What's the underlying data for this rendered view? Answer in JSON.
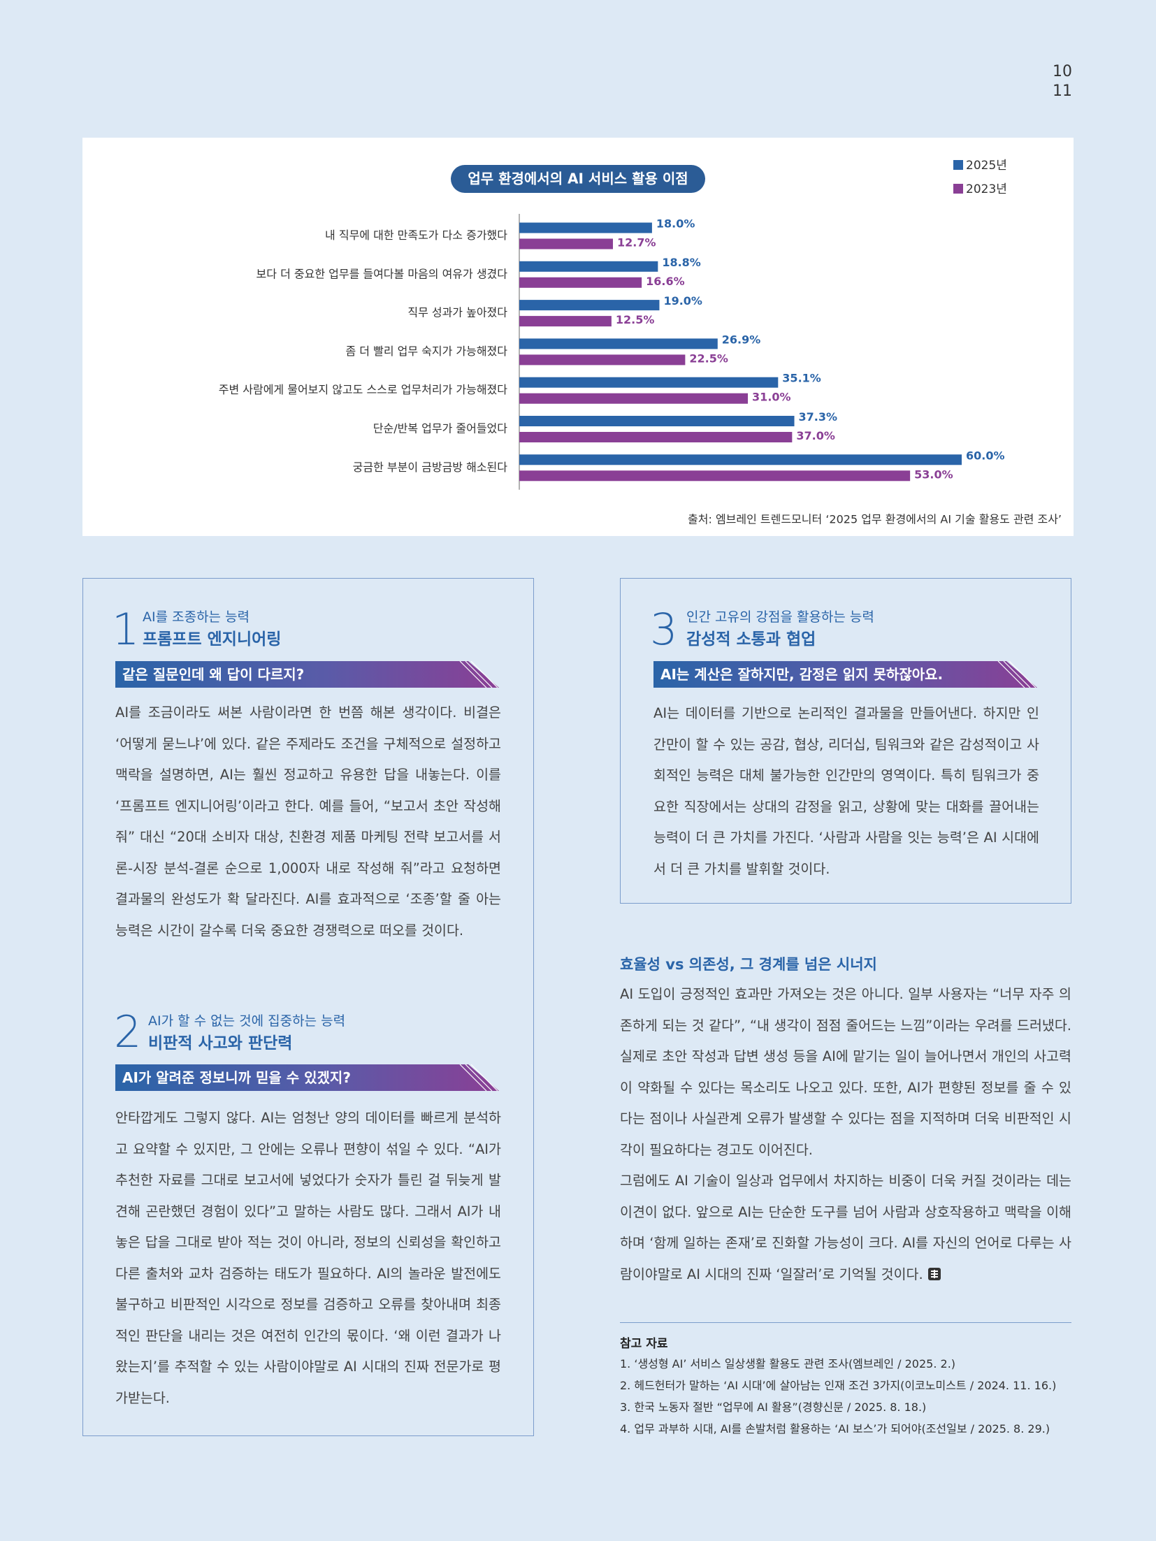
{
  "page_numbers": [
    "10",
    "11"
  ],
  "chart_data": {
    "type": "bar",
    "orientation": "horizontal",
    "title": "업무 환경에서의 AI 서비스 활용 이점",
    "categories": [
      "내 직무에 대한 만족도가 다소 증가했다",
      "보다 더 중요한 업무를 들여다볼 마음의 여유가 생겼다",
      "직무 성과가 높아졌다",
      "좀 더 빨리 업무 숙지가 가능해졌다",
      "주변 사람에게 물어보지 않고도 스스로 업무처리가 가능해졌다",
      "단순/반복 업무가 줄어들었다",
      "궁금한 부분이 금방금방 해소된다"
    ],
    "series": [
      {
        "name": "2025년",
        "color": "#2a64a8",
        "values": [
          18.0,
          18.8,
          19.0,
          26.9,
          35.1,
          37.3,
          60.0
        ],
        "value_labels": [
          "18.0%",
          "18.8%",
          "19.0%",
          "26.9%",
          "35.1%",
          "37.3%",
          "60.0%"
        ]
      },
      {
        "name": "2023년",
        "color": "#8a3f95",
        "values": [
          12.7,
          16.6,
          12.5,
          22.5,
          31.0,
          37.0,
          53.0
        ],
        "value_labels": [
          "12.7%",
          "16.6%",
          "12.5%",
          "22.5%",
          "31.0%",
          "37.0%",
          "53.0%"
        ]
      }
    ],
    "legend": "top-right",
    "source": "출처: 엠브레인 트렌드모니터 ‘2025 업무 환경에서의 AI 기술 활용도 관련 조사’"
  },
  "sections": [
    {
      "number": "1",
      "subtitle": "AI를 조종하는 능력",
      "title": "프롬프트 엔지니어링",
      "banner": "같은 질문인데 왜 답이 다르지?",
      "body": "AI를 조금이라도 써본 사람이라면 한 번쯤 해본 생각이다. 비결은 ‘어떻게 묻느냐’에 있다. 같은 주제라도 조건을 구체적으로 설정하고 맥락을 설명하면, AI는 훨씬 정교하고 유용한 답을 내놓는다. 이를 ‘프롬프트 엔지니어링’이라고 한다. 예를 들어, “보고서 초안 작성해 줘” 대신 “20대 소비자 대상, 친환경 제품 마케팅 전략 보고서를 서론-시장 분석-결론 순으로 1,000자 내로 작성해 줘”라고 요청하면 결과물의 완성도가 확 달라진다. AI를 효과적으로 ‘조종’할 줄 아는 능력은 시간이 갈수록 더욱 중요한 경쟁력으로 떠오를 것이다."
    },
    {
      "number": "2",
      "subtitle": "AI가 할 수 없는 것에 집중하는 능력",
      "title": "비판적 사고와 판단력",
      "banner": "AI가 알려준 정보니까 믿을 수 있겠지?",
      "body": "안타깝게도 그렇지 않다. AI는 엄청난 양의 데이터를 빠르게 분석하고 요약할 수 있지만, 그 안에는 오류나 편향이 섞일 수 있다. “AI가 추천한 자료를 그대로 보고서에 넣었다가 숫자가 틀린 걸 뒤늦게 발견해 곤란했던 경험이 있다”고 말하는 사람도 많다. 그래서 AI가 내놓은 답을 그대로 받아 적는 것이 아니라, 정보의 신뢰성을 확인하고 다른 출처와 교차 검증하는 태도가 필요하다. AI의 놀라운 발전에도 불구하고 비판적인 시각으로 정보를 검증하고 오류를 찾아내며 최종적인 판단을 내리는 것은 여전히 인간의 몫이다. ‘왜 이런 결과가 나왔는지’를 추적할 수 있는 사람이야말로 AI 시대의 진짜 전문가로 평가받는다."
    },
    {
      "number": "3",
      "subtitle": "인간 고유의 강점을 활용하는 능력",
      "title": "감성적 소통과 협업",
      "banner": "AI는 계산은 잘하지만, 감정은 읽지 못하잖아요.",
      "body": "AI는 데이터를 기반으로 논리적인 결과물을 만들어낸다. 하지만 인간만이 할 수 있는 공감, 협상, 리더십, 팀워크와 같은 감성적이고 사회적인 능력은 대체 불가능한 인간만의 영역이다. 특히 팀워크가 중요한 직장에서는 상대의 감정을 읽고, 상황에 맞는 대화를 끌어내는 능력이 더 큰 가치를 가진다. ‘사람과 사람을 잇는 능력’은 AI 시대에서 더 큰 가치를 발휘할 것이다."
    }
  ],
  "essay": {
    "heading": "효율성 vs 의존성, 그 경계를 넘은 시너지",
    "paragraphs": [
      "AI 도입이 긍정적인 효과만 가져오는 것은 아니다. 일부 사용자는 “너무 자주 의존하게 되는 것 같다”, “내 생각이 점점 줄어드는 느낌”이라는 우려를 드러냈다. 실제로 초안 작성과 답변 생성 등을 AI에 맡기는 일이 늘어나면서 개인의 사고력이 약화될 수 있다는 목소리도 나오고 있다. 또한, AI가 편향된 정보를 줄 수 있다는 점이나 사실관계 오류가 발생할 수 있다는 점을 지적하며 더욱 비판적인 시각이 필요하다는 경고도 이어진다.",
      "그럼에도 AI 기술이 일상과 업무에서 차지하는 비중이 더욱 커질 것이라는 데는 이견이 없다. 앞으로 AI는 단순한 도구를 넘어 사람과 상호작용하고 맥락을 이해하며 ‘함께 일하는 존재’로 진화할 가능성이 크다. AI를 자신의 언어로 다루는 사람이야말로 AI 시대의 진짜 ‘일잘러’로 기억될 것이다."
    ]
  },
  "references": {
    "title": "참고 자료",
    "items": [
      "1. ‘생성형 AI’ 서비스 일상생활 활용도 관련 조사(엠브레인 / 2025. 2.)",
      "2. 헤드헌터가 말하는 ‘AI 시대’에 살아남는 인재 조건 3가지(이코노미스트 / 2024. 11. 16.)",
      "3. 한국 노동자 절반 “업무에 AI 활용”(경향신문 / 2025. 8. 18.)",
      "4. 업무 과부하 시대, AI를 손발처럼 활용하는 ‘AI 보스’가 되어야(조선일보 / 2025. 8. 29.)"
    ]
  }
}
